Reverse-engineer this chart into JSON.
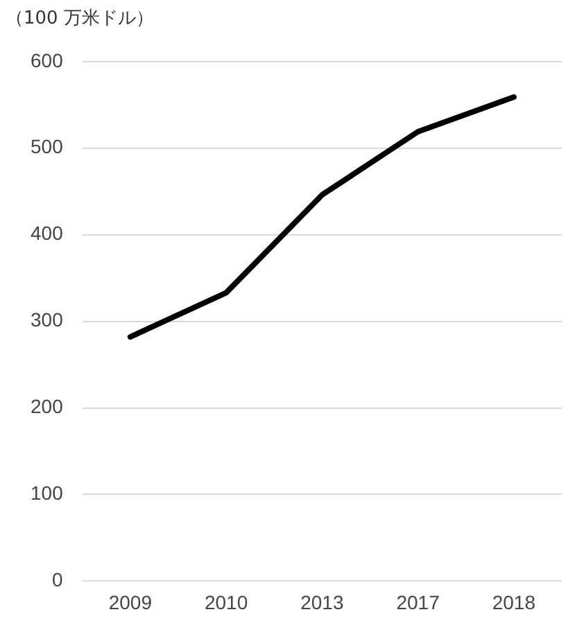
{
  "chart_data": {
    "type": "line",
    "ylabel": "（100 万米ドル）",
    "categories": [
      "2009",
      "2010",
      "2013",
      "2017",
      "2018"
    ],
    "series": [
      {
        "color": "#000000",
        "values": [
          282,
          333,
          446,
          519,
          559
        ]
      }
    ],
    "ylim": [
      0,
      600
    ],
    "yticks": [
      0,
      100,
      200,
      300,
      400,
      500,
      600
    ],
    "grid": "y",
    "legend": false,
    "marker": "none",
    "line_style": "solid"
  }
}
